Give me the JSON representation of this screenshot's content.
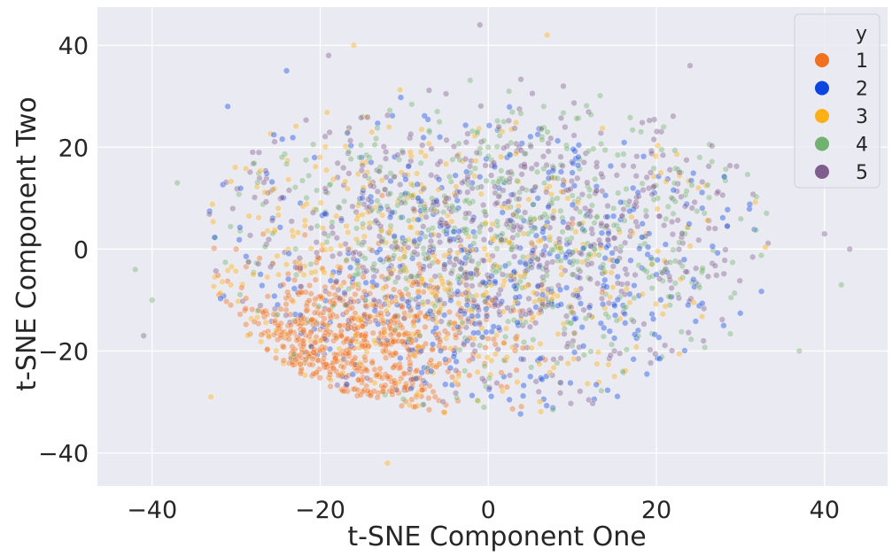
{
  "chart_data": {
    "type": "scatter",
    "title": "",
    "xlabel": "t-SNE Component One",
    "ylabel": "t-SNE Component Two",
    "xlim": [
      -46.5,
      47.5
    ],
    "ylim": [
      -46.5,
      47.5
    ],
    "xticks": [
      -40,
      -20,
      0,
      20,
      40
    ],
    "yticks": [
      -40,
      -20,
      0,
      20,
      40
    ],
    "xtick_labels": [
      "−40",
      "−20",
      "0",
      "20",
      "40"
    ],
    "ytick_labels": [
      "−40",
      "−20",
      "0",
      "20",
      "40"
    ],
    "grid": true,
    "background": "#eaeaf2",
    "point_alpha": 0.4,
    "legend": {
      "title": "y",
      "placement": "top-right",
      "entries": [
        {
          "label": "1",
          "color": "#f1711f"
        },
        {
          "label": "2",
          "color": "#0c45e0"
        },
        {
          "label": "3",
          "color": "#fdb015"
        },
        {
          "label": "4",
          "color": "#72b16f"
        },
        {
          "label": "5",
          "color": "#7f5d8c"
        }
      ]
    },
    "series": [
      {
        "name": "1",
        "color": "#f1711f",
        "center": [
          -17,
          -20
        ],
        "spread": [
          9,
          8
        ],
        "count": 650,
        "sample_points": [
          [
            -20,
            -20
          ],
          [
            -18,
            -22
          ],
          [
            -22,
            -18
          ],
          [
            -15,
            -19
          ],
          [
            -12,
            -25
          ],
          [
            -25,
            -15
          ],
          [
            -5,
            5
          ],
          [
            3,
            -12
          ],
          [
            10,
            5
          ],
          [
            -30,
            0
          ]
        ]
      },
      {
        "name": "2",
        "color": "#0c45e0",
        "center": [
          0,
          -5
        ],
        "spread": [
          17,
          15
        ],
        "count": 450,
        "sample_points": [
          [
            -24,
            35
          ],
          [
            -31,
            28
          ],
          [
            -8,
            -20
          ],
          [
            5,
            -25
          ],
          [
            10,
            15
          ],
          [
            -15,
            10
          ],
          [
            20,
            -5
          ],
          [
            28,
            -15
          ]
        ]
      },
      {
        "name": "3",
        "color": "#fdb015",
        "center": [
          -8,
          -5
        ],
        "spread": [
          16,
          15
        ],
        "count": 450,
        "sample_points": [
          [
            -16,
            40
          ],
          [
            7,
            42
          ],
          [
            -33,
            -29
          ],
          [
            -12,
            -42
          ],
          [
            -20,
            -18
          ],
          [
            15,
            -25
          ],
          [
            25,
            12
          ],
          [
            -25,
            8
          ]
        ]
      },
      {
        "name": "4",
        "color": "#72b16f",
        "center": [
          3,
          3
        ],
        "spread": [
          17,
          15
        ],
        "count": 550,
        "sample_points": [
          [
            -42,
            -4
          ],
          [
            -40,
            -10
          ],
          [
            -37,
            13
          ],
          [
            37,
            -20
          ],
          [
            42,
            -7
          ],
          [
            16,
            -24
          ],
          [
            0,
            20
          ],
          [
            10,
            -5
          ]
        ]
      },
      {
        "name": "5",
        "color": "#7f5d8c",
        "center": [
          0,
          2
        ],
        "spread": [
          17,
          15
        ],
        "count": 700,
        "sample_points": [
          [
            -41,
            -17
          ],
          [
            -19,
            38
          ],
          [
            -1,
            44
          ],
          [
            24,
            36
          ],
          [
            43,
            0
          ],
          [
            40,
            3
          ],
          [
            6,
            -28
          ],
          [
            -5,
            10
          ],
          [
            15,
            -20
          ]
        ]
      }
    ]
  }
}
